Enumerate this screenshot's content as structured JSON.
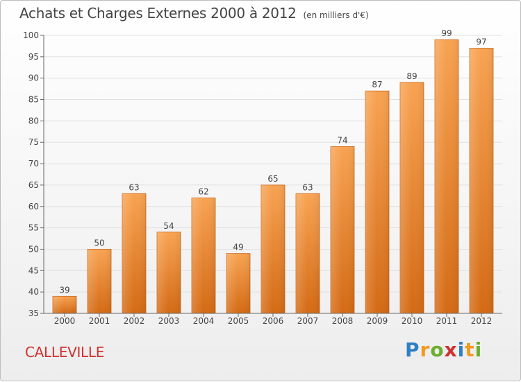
{
  "title": "Achats et Charges Externes 2000 à 2012",
  "subtitle": "(en milliers d'€)",
  "commune": "CALLEVILLE",
  "logo": {
    "letters": [
      "P",
      "r",
      "o",
      "x",
      "i",
      "t",
      "i"
    ],
    "colors": [
      "#2e7fc2",
      "#f29a1e",
      "#6cae2d",
      "#d22f2f",
      "#2e7fc2",
      "#f29a1e",
      "#6cae2d"
    ]
  },
  "colors": {
    "bar_top": "#f8a352",
    "bar_bottom": "#d46a14",
    "grid": "#e0e0e0",
    "text": "#444444",
    "brand": "#d2302f"
  },
  "chart_data": {
    "type": "bar",
    "title": "Achats et Charges Externes 2000 à 2012",
    "subtitle": "(en milliers d'€)",
    "categories": [
      "2000",
      "2001",
      "2002",
      "2003",
      "2004",
      "2005",
      "2006",
      "2007",
      "2008",
      "2009",
      "2010",
      "2011",
      "2012"
    ],
    "values": [
      39,
      50,
      63,
      54,
      62,
      49,
      65,
      63,
      74,
      87,
      89,
      99,
      97
    ],
    "ylim": [
      35,
      100
    ],
    "yticks": [
      35,
      40,
      45,
      50,
      55,
      60,
      65,
      70,
      75,
      80,
      85,
      90,
      95,
      100
    ],
    "grid": true,
    "data_labels": true
  }
}
